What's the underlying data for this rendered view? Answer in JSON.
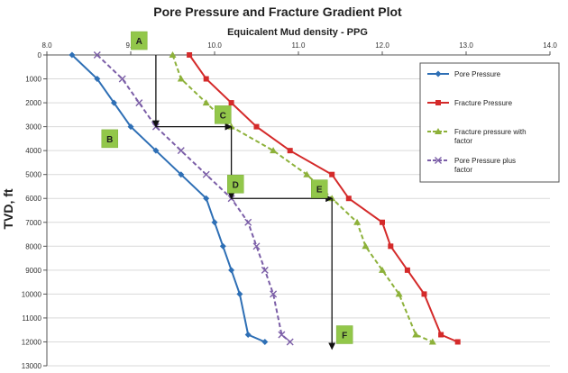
{
  "chart_data": {
    "type": "line",
    "title": "Pore Pressure and Fracture Gradient Plot",
    "subtitle": "Equicalent Mud density - PPG",
    "xlabel": "Equicalent Mud density - PPG",
    "ylabel": "TVD, ft",
    "xlim": [
      8.0,
      14.0
    ],
    "ylim": [
      13000,
      0
    ],
    "x_ticks": [
      "8.0",
      "9.0",
      "10.0",
      "11.0",
      "12.0",
      "13.0",
      "14.0"
    ],
    "x_tick_values": [
      8,
      9,
      10,
      11,
      12,
      13,
      14
    ],
    "y_ticks": [
      "0",
      "1000",
      "2000",
      "3000",
      "4000",
      "5000",
      "6000",
      "7000",
      "8000",
      "9000",
      "10000",
      "11000",
      "12000",
      "13000"
    ],
    "y_tick_values": [
      0,
      1000,
      2000,
      3000,
      4000,
      5000,
      6000,
      7000,
      8000,
      9000,
      10000,
      11000,
      12000,
      13000
    ],
    "series": [
      {
        "name": "Pore Pressure",
        "color": "#2e6fb5",
        "dash": "solid",
        "marker": "diamond",
        "points": [
          [
            8.3,
            0
          ],
          [
            8.6,
            1000
          ],
          [
            8.8,
            2000
          ],
          [
            9.0,
            3000
          ],
          [
            9.3,
            4000
          ],
          [
            9.6,
            5000
          ],
          [
            9.9,
            6000
          ],
          [
            10.0,
            7000
          ],
          [
            10.1,
            8000
          ],
          [
            10.2,
            9000
          ],
          [
            10.3,
            10000
          ],
          [
            10.4,
            11700
          ],
          [
            10.6,
            12000
          ]
        ]
      },
      {
        "name": "Fracture Pressure",
        "color": "#d42a2a",
        "dash": "solid",
        "marker": "square",
        "points": [
          [
            9.7,
            0
          ],
          [
            9.9,
            1000
          ],
          [
            10.2,
            2000
          ],
          [
            10.5,
            3000
          ],
          [
            10.9,
            4000
          ],
          [
            11.4,
            5000
          ],
          [
            11.6,
            6000
          ],
          [
            12.0,
            7000
          ],
          [
            12.1,
            8000
          ],
          [
            12.3,
            9000
          ],
          [
            12.5,
            10000
          ],
          [
            12.7,
            11700
          ],
          [
            12.9,
            12000
          ]
        ]
      },
      {
        "name": "Fracture pressure with factor",
        "color": "#8db13a",
        "dash": "dashed",
        "marker": "triangle",
        "points": [
          [
            9.5,
            0
          ],
          [
            9.6,
            1000
          ],
          [
            9.9,
            2000
          ],
          [
            10.2,
            3000
          ],
          [
            10.7,
            4000
          ],
          [
            11.1,
            5000
          ],
          [
            11.4,
            6000
          ],
          [
            11.7,
            7000
          ],
          [
            11.8,
            8000
          ],
          [
            12.0,
            9000
          ],
          [
            12.2,
            10000
          ],
          [
            12.4,
            11700
          ],
          [
            12.6,
            12000
          ]
        ]
      },
      {
        "name": "Pore Pressure plus factor",
        "color": "#7b5ea7",
        "dash": "dashed",
        "marker": "x",
        "points": [
          [
            8.6,
            0
          ],
          [
            8.9,
            1000
          ],
          [
            9.1,
            2000
          ],
          [
            9.3,
            3000
          ],
          [
            9.6,
            4000
          ],
          [
            9.9,
            5000
          ],
          [
            10.2,
            6000
          ],
          [
            10.4,
            7000
          ],
          [
            10.5,
            8000
          ],
          [
            10.6,
            9000
          ],
          [
            10.7,
            10000
          ],
          [
            10.8,
            11700
          ],
          [
            10.9,
            12000
          ]
        ]
      }
    ],
    "annotations": [
      {
        "label": "A",
        "x": 9.1,
        "y": -600
      },
      {
        "label": "B",
        "x": 8.75,
        "y": 3500
      },
      {
        "label": "C",
        "x": 10.1,
        "y": 2500
      },
      {
        "label": "D",
        "x": 10.25,
        "y": 5400
      },
      {
        "label": "E",
        "x": 11.25,
        "y": 5600
      },
      {
        "label": "F",
        "x": 11.55,
        "y": 11700
      }
    ],
    "arrows": [
      {
        "from": [
          9.3,
          0
        ],
        "to": [
          9.3,
          3000
        ]
      },
      {
        "from": [
          9.3,
          3000
        ],
        "to": [
          10.2,
          3000
        ]
      },
      {
        "from": [
          10.2,
          3000
        ],
        "to": [
          10.2,
          6000
        ]
      },
      {
        "from": [
          10.2,
          6000
        ],
        "to": [
          11.4,
          6000
        ]
      },
      {
        "from": [
          11.4,
          6000
        ],
        "to": [
          11.4,
          12300
        ]
      }
    ],
    "legend_position": "right",
    "grid": "horizontal"
  }
}
